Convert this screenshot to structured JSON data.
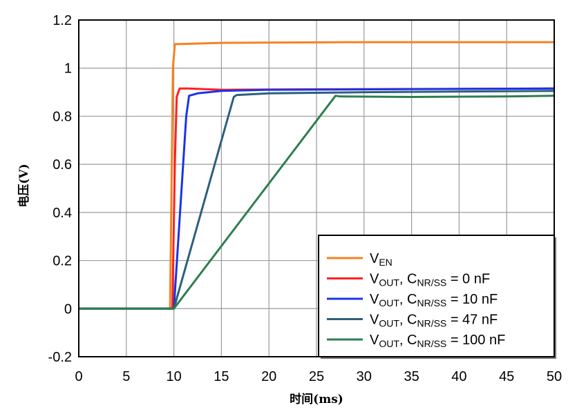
{
  "chart_data": {
    "type": "line",
    "xlabel": "时间(ms)",
    "ylabel": "电压(V)",
    "xlim": [
      0,
      50
    ],
    "ylim": [
      -0.2,
      1.2
    ],
    "x_ticks": [
      "0",
      "5",
      "10",
      "15",
      "20",
      "25",
      "30",
      "35",
      "40",
      "45",
      "50"
    ],
    "y_ticks": [
      "-0.2",
      "0",
      "0.2",
      "0.4",
      "0.6",
      "0.8",
      "1",
      "1.2"
    ],
    "grid": true,
    "legend_position": "bottom-right",
    "series": [
      {
        "name": "VEN",
        "color": "#f5821f",
        "legend": {
          "main": "V",
          "sub": "EN",
          "rest": ""
        },
        "points": [
          [
            0,
            0
          ],
          [
            9.6,
            0
          ],
          [
            9.75,
            0.5
          ],
          [
            9.9,
            1.0
          ],
          [
            10.1,
            1.1
          ],
          [
            10.5,
            1.1
          ],
          [
            15,
            1.105
          ],
          [
            30,
            1.108
          ],
          [
            50,
            1.108
          ]
        ]
      },
      {
        "name": "VOUT, CNR/SS = 0 nF",
        "color": "#ff2020",
        "legend": {
          "main": "V",
          "sub": "OUT",
          "mid": ", C",
          "sub2": "NR/SS",
          "rest": " = 0 nF"
        },
        "points": [
          [
            0,
            0
          ],
          [
            9.85,
            0
          ],
          [
            10.1,
            0.6
          ],
          [
            10.3,
            0.88
          ],
          [
            10.6,
            0.915
          ],
          [
            11.5,
            0.915
          ],
          [
            15,
            0.91
          ],
          [
            25,
            0.912
          ],
          [
            50,
            0.915
          ]
        ]
      },
      {
        "name": "VOUT, CNR/SS = 10 nF",
        "color": "#1a33e6",
        "legend": {
          "main": "V",
          "sub": "OUT",
          "mid": ", C",
          "sub2": "NR/SS",
          "rest": " = 10 nF"
        },
        "points": [
          [
            0,
            0
          ],
          [
            10,
            0
          ],
          [
            11.3,
            0.8
          ],
          [
            11.6,
            0.885
          ],
          [
            12.5,
            0.895
          ],
          [
            15,
            0.905
          ],
          [
            20,
            0.91
          ],
          [
            50,
            0.915
          ]
        ]
      },
      {
        "name": "VOUT, CNR/SS = 47 nF",
        "color": "#2b5f7c",
        "legend": {
          "main": "V",
          "sub": "OUT",
          "mid": ", C",
          "sub2": "NR/SS",
          "rest": " = 47 nF"
        },
        "points": [
          [
            0,
            0
          ],
          [
            10,
            0
          ],
          [
            16.3,
            0.88
          ],
          [
            16.6,
            0.888
          ],
          [
            20,
            0.895
          ],
          [
            30,
            0.9
          ],
          [
            50,
            0.905
          ]
        ]
      },
      {
        "name": "VOUT, CNR/SS = 100 nF",
        "color": "#2e7d4f",
        "legend": {
          "main": "V",
          "sub": "OUT",
          "mid": ", C",
          "sub2": "NR/SS",
          "rest": " = 100 nF"
        },
        "points": [
          [
            0,
            0
          ],
          [
            10,
            0
          ],
          [
            27,
            0.885
          ],
          [
            27.5,
            0.882
          ],
          [
            35,
            0.88
          ],
          [
            45,
            0.882
          ],
          [
            50,
            0.885
          ]
        ]
      }
    ]
  }
}
